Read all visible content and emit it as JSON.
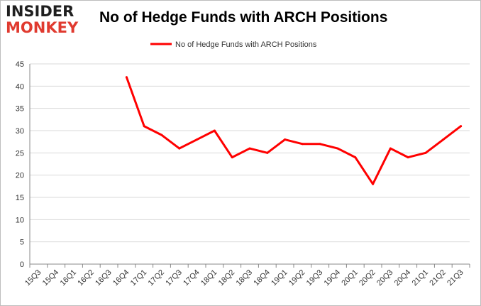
{
  "logo": {
    "line1": "INSIDER",
    "line2": "MONKEY"
  },
  "colors": {
    "series": "#ff0000",
    "grid": "#d9d9d9",
    "axis": "#888888",
    "logo_accent": "#e03a2f"
  },
  "chart_data": {
    "type": "line",
    "title": "No of Hedge Funds with ARCH Positions",
    "xlabel": "",
    "ylabel": "",
    "ylim": [
      0,
      45
    ],
    "yticks": [
      0,
      5,
      10,
      15,
      20,
      25,
      30,
      35,
      40,
      45
    ],
    "grid": true,
    "legend_position": "top-center",
    "categories": [
      "15Q3",
      "15Q4",
      "16Q1",
      "16Q2",
      "16Q3",
      "16Q4",
      "17Q1",
      "17Q2",
      "17Q3",
      "17Q4",
      "18Q1",
      "18Q2",
      "18Q3",
      "18Q4",
      "19Q1",
      "19Q2",
      "19Q3",
      "19Q4",
      "20Q1",
      "20Q2",
      "20Q3",
      "20Q4",
      "21Q1",
      "21Q2",
      "21Q3"
    ],
    "series": [
      {
        "name": "No of Hedge Funds with ARCH Positions",
        "values": [
          null,
          null,
          null,
          null,
          null,
          42,
          31,
          29,
          26,
          28,
          30,
          24,
          26,
          25,
          28,
          27,
          27,
          26,
          24,
          18,
          26,
          24,
          25,
          28,
          31
        ]
      }
    ]
  }
}
